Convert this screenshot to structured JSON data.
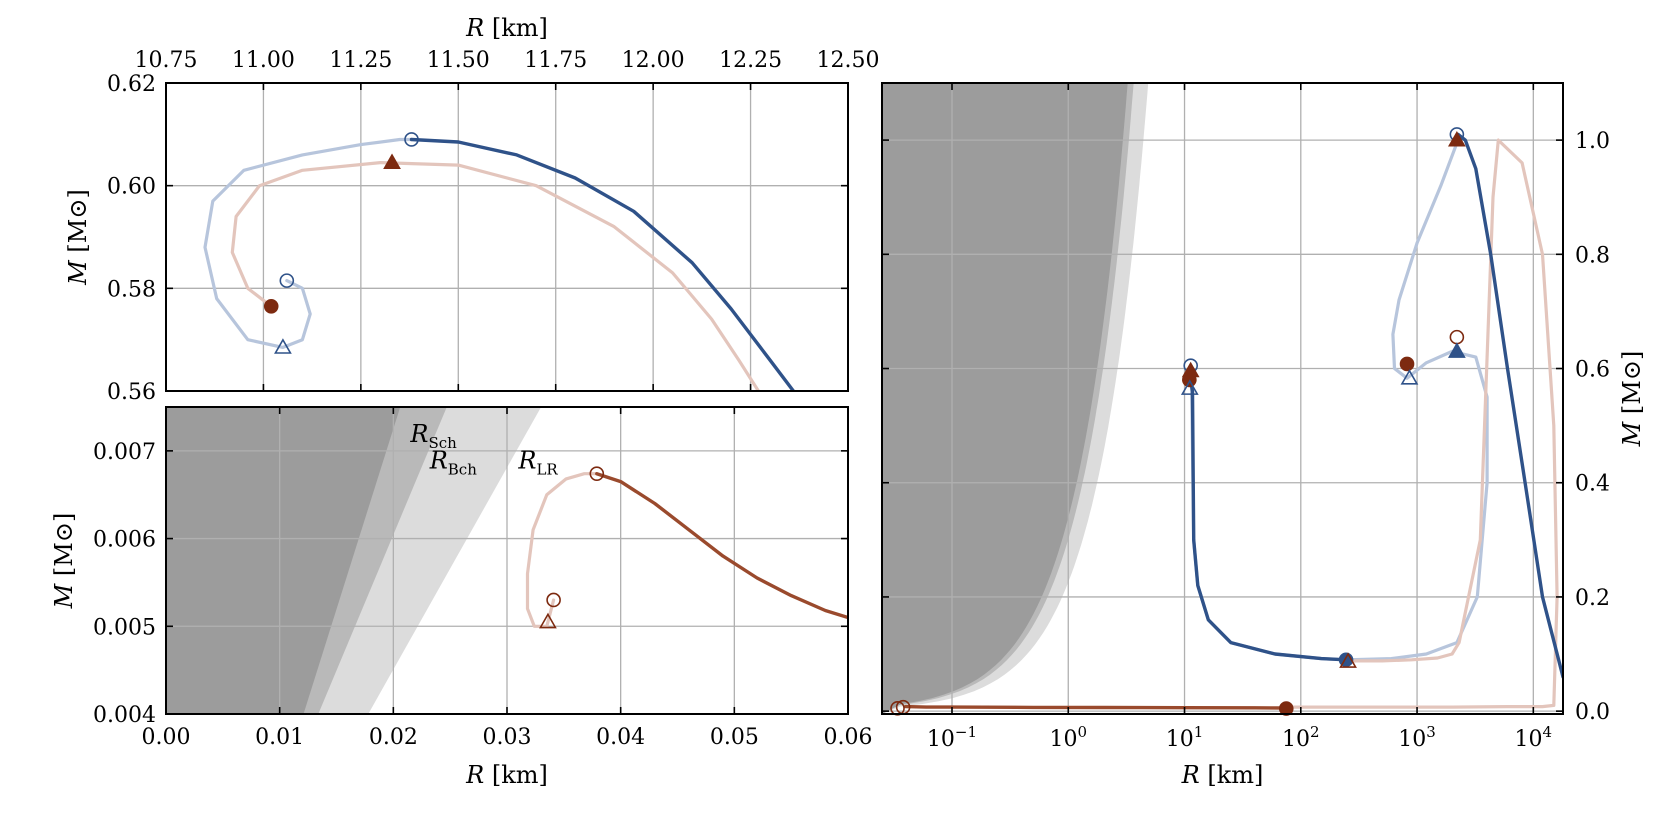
{
  "colors": {
    "blue": "#2f5289",
    "blue_light": "#b7c5dc",
    "red": "#7d2a10",
    "red_light": "#e3c5bc",
    "brown": "#9a4a2d",
    "grid": "#b0b0b0",
    "shade_dark": "#9c9c9c",
    "shade_mid": "#b9b9b9",
    "shade_light": "#dcdcdc"
  },
  "chart_data": [
    {
      "id": "top_left",
      "type": "line",
      "xlabel": "R [km]",
      "ylabel": "M [M⊙]",
      "x_axis_position": "top",
      "xlim": [
        10.75,
        12.5
      ],
      "ylim": [
        0.56,
        0.62
      ],
      "xticks": [
        "10.75",
        "11.00",
        "11.25",
        "11.50",
        "11.75",
        "12.00",
        "12.25",
        "12.50"
      ],
      "yticks": [
        "0.56",
        "0.58",
        "0.60",
        "0.62"
      ],
      "grid": true,
      "series": [
        {
          "style": "blue_light",
          "x": [
            11.06,
            11.1,
            11.12,
            11.1,
            11.05,
            10.96,
            10.88,
            10.85,
            10.87,
            10.95,
            11.1,
            11.25,
            11.35,
            11.38
          ],
          "y": [
            0.5815,
            0.58,
            0.575,
            0.57,
            0.5685,
            0.57,
            0.578,
            0.588,
            0.597,
            0.603,
            0.606,
            0.608,
            0.609,
            0.609
          ]
        },
        {
          "style": "blue",
          "x": [
            11.38,
            11.5,
            11.65,
            11.8,
            11.95,
            12.1,
            12.2,
            12.3,
            12.36
          ],
          "y": [
            0.609,
            0.6085,
            0.606,
            0.6015,
            0.595,
            0.585,
            0.576,
            0.566,
            0.56
          ]
        },
        {
          "style": "red_light",
          "x": [
            11.02,
            10.96,
            10.92,
            10.93,
            10.99,
            11.1,
            11.3,
            11.5,
            11.7,
            11.9,
            12.05,
            12.15,
            12.22,
            12.27
          ],
          "y": [
            0.5765,
            0.58,
            0.587,
            0.594,
            0.6,
            0.603,
            0.6045,
            0.604,
            0.6,
            0.592,
            0.583,
            0.574,
            0.566,
            0.56
          ]
        }
      ],
      "markers": [
        {
          "style": "blue",
          "shape": "circle-open",
          "x": 11.38,
          "y": 0.609
        },
        {
          "style": "blue",
          "shape": "circle-open",
          "x": 11.06,
          "y": 0.5815
        },
        {
          "style": "blue",
          "shape": "triangle-open",
          "x": 11.05,
          "y": 0.5685
        },
        {
          "style": "red",
          "shape": "circle-filled",
          "x": 11.02,
          "y": 0.5765
        },
        {
          "style": "red",
          "shape": "triangle-filled",
          "x": 11.33,
          "y": 0.6045
        }
      ]
    },
    {
      "id": "bottom_left",
      "type": "line",
      "xlabel": "R [km]",
      "ylabel": "M [M⊙]",
      "xlim": [
        0.0,
        0.06
      ],
      "ylim": [
        0.004,
        0.0075
      ],
      "xticks": [
        "0.00",
        "0.01",
        "0.02",
        "0.03",
        "0.04",
        "0.05",
        "0.06"
      ],
      "yticks": [
        "0.004",
        "0.005",
        "0.006",
        "0.007"
      ],
      "grid": true,
      "annotations": [
        {
          "base": "R",
          "sub": "Sch",
          "x": 0.0215,
          "y": 0.0071
        },
        {
          "base": "R",
          "sub": "Bch",
          "x": 0.0232,
          "y": 0.0068
        },
        {
          "base": "R",
          "sub": "LR",
          "x": 0.031,
          "y": 0.0068
        }
      ],
      "regions": [
        {
          "style": "shade_dark",
          "label": "R_Sch",
          "m_at_bottom": 0.004,
          "x_at_bottom": 0.0121,
          "m_at_top": 0.0075,
          "x_at_top": 0.0206
        },
        {
          "style": "shade_mid",
          "label": "R_Bch",
          "m_at_bottom": 0.004,
          "x_at_bottom": 0.0134,
          "m_at_top": 0.0075,
          "x_at_top": 0.0247
        },
        {
          "style": "shade_light",
          "label": "R_LR",
          "m_at_bottom": 0.004,
          "x_at_bottom": 0.0178,
          "m_at_top": 0.0075,
          "x_at_top": 0.033
        }
      ],
      "series": [
        {
          "style": "red_light",
          "x": [
            0.0341,
            0.0335,
            0.0324,
            0.0318,
            0.0318,
            0.0323,
            0.0335,
            0.0352,
            0.0368,
            0.0379
          ],
          "y": [
            0.0053,
            0.005,
            0.005,
            0.0052,
            0.0056,
            0.0061,
            0.0065,
            0.00668,
            0.00674,
            0.00674
          ]
        },
        {
          "style": "brown",
          "x": [
            0.0379,
            0.04,
            0.043,
            0.046,
            0.049,
            0.052,
            0.055,
            0.058,
            0.06
          ],
          "y": [
            0.00674,
            0.00665,
            0.0064,
            0.0061,
            0.0058,
            0.00555,
            0.00535,
            0.00518,
            0.0051
          ]
        }
      ],
      "markers": [
        {
          "style": "red",
          "shape": "circle-open",
          "x": 0.0379,
          "y": 0.00674
        },
        {
          "style": "red",
          "shape": "circle-open",
          "x": 0.0341,
          "y": 0.0053
        },
        {
          "style": "red",
          "shape": "triangle-open",
          "x": 0.0336,
          "y": 0.00505
        }
      ]
    },
    {
      "id": "right",
      "type": "line",
      "xlabel": "R [km]",
      "ylabel": "M [M⊙]",
      "x_scale": "log",
      "y_axis_position": "right",
      "xlim": [
        0.025,
        18000
      ],
      "ylim": [
        -0.005,
        1.1
      ],
      "xticks": [
        {
          "base": "10",
          "exp": "−1"
        },
        {
          "base": "10",
          "exp": "0"
        },
        {
          "base": "10",
          "exp": "1"
        },
        {
          "base": "10",
          "exp": "2"
        },
        {
          "base": "10",
          "exp": "3"
        },
        {
          "base": "10",
          "exp": "4"
        }
      ],
      "yticks": [
        "0.0",
        "0.2",
        "0.4",
        "0.6",
        "0.8",
        "1.0"
      ],
      "grid": true,
      "regions": [
        {
          "style": "shade_dark",
          "label": "R_Sch",
          "r_per_mass": 2.95
        },
        {
          "style": "shade_mid",
          "label": "R_Bch",
          "r_per_mass": 3.32
        },
        {
          "style": "shade_light",
          "label": "R_LR",
          "r_per_mass": 4.43
        }
      ],
      "series": [
        {
          "style": "blue_light",
          "x": [
            11.2,
            11.5,
            11.6,
            12,
            13,
            16,
            25,
            60,
            150,
            245,
            600,
            1200,
            2200,
            3300,
            4000,
            4000,
            3200,
            2000,
            1200,
            820,
            640,
            620,
            700,
            1000,
            1600,
            2250
          ],
          "y": [
            0.575,
            0.57,
            0.52,
            0.3,
            0.22,
            0.16,
            0.12,
            0.1,
            0.092,
            0.09,
            0.092,
            0.1,
            0.12,
            0.2,
            0.4,
            0.55,
            0.62,
            0.63,
            0.61,
            0.583,
            0.6,
            0.66,
            0.72,
            0.82,
            0.92,
            1.0
          ]
        },
        {
          "style": "red_light",
          "x": [
            80,
            200,
            600,
            2000,
            6000,
            12000,
            15000,
            16000,
            15000,
            12000,
            8000,
            5000,
            4500,
            4000,
            3500,
            2300,
            2000,
            1500,
            900,
            500,
            300,
            255
          ],
          "y": [
            0.007,
            0.007,
            0.007,
            0.007,
            0.008,
            0.008,
            0.01,
            0.2,
            0.5,
            0.8,
            0.96,
            1.0,
            0.9,
            0.62,
            0.3,
            0.12,
            0.1,
            0.093,
            0.09,
            0.088,
            0.088,
            0.087
          ]
        },
        {
          "style": "blue",
          "x": [
            11.4,
            11.7,
            12,
            13,
            16,
            25,
            60,
            150,
            245
          ],
          "y": [
            0.575,
            0.56,
            0.3,
            0.22,
            0.16,
            0.12,
            0.1,
            0.092,
            0.09
          ]
        },
        {
          "style": "blue",
          "x": [
            2250,
            2600,
            3200,
            4300,
            6000,
            8500,
            12000,
            18000
          ],
          "y": [
            1.01,
            1.0,
            0.95,
            0.8,
            0.6,
            0.4,
            0.2,
            0.06
          ]
        },
        {
          "style": "brown",
          "x": [
            0.04,
            0.06,
            0.1,
            0.5,
            2,
            10,
            40,
            75
          ],
          "y": [
            0.008,
            0.007,
            0.007,
            0.0065,
            0.0063,
            0.006,
            0.0058,
            0.0055
          ]
        }
      ],
      "markers": [
        {
          "style": "blue",
          "shape": "circle-open",
          "x": 2200,
          "y": 1.01
        },
        {
          "style": "red",
          "shape": "triangle-filled",
          "x": 2200,
          "y": 1.0
        },
        {
          "style": "red",
          "shape": "circle-open",
          "x": 2200,
          "y": 0.655
        },
        {
          "style": "blue",
          "shape": "triangle-filled",
          "x": 2200,
          "y": 0.63
        },
        {
          "style": "red",
          "shape": "circle-filled",
          "x": 820,
          "y": 0.608
        },
        {
          "style": "blue",
          "shape": "triangle-open",
          "x": 860,
          "y": 0.583
        },
        {
          "style": "blue",
          "shape": "circle-open",
          "x": 11.3,
          "y": 0.605
        },
        {
          "style": "red",
          "shape": "triangle-filled",
          "x": 11.3,
          "y": 0.596
        },
        {
          "style": "red",
          "shape": "circle-filled",
          "x": 11.0,
          "y": 0.58
        },
        {
          "style": "blue",
          "shape": "triangle-open",
          "x": 11.1,
          "y": 0.565
        },
        {
          "style": "blue",
          "shape": "circle-filled",
          "x": 245,
          "y": 0.09
        },
        {
          "style": "red",
          "shape": "triangle-open",
          "x": 255,
          "y": 0.087
        },
        {
          "style": "red",
          "shape": "circle-filled",
          "x": 75,
          "y": 0.0045
        },
        {
          "style": "red",
          "shape": "circle-open",
          "x": 0.034,
          "y": 0.005
        },
        {
          "style": "red",
          "shape": "circle-open",
          "x": 0.038,
          "y": 0.007
        }
      ]
    }
  ]
}
